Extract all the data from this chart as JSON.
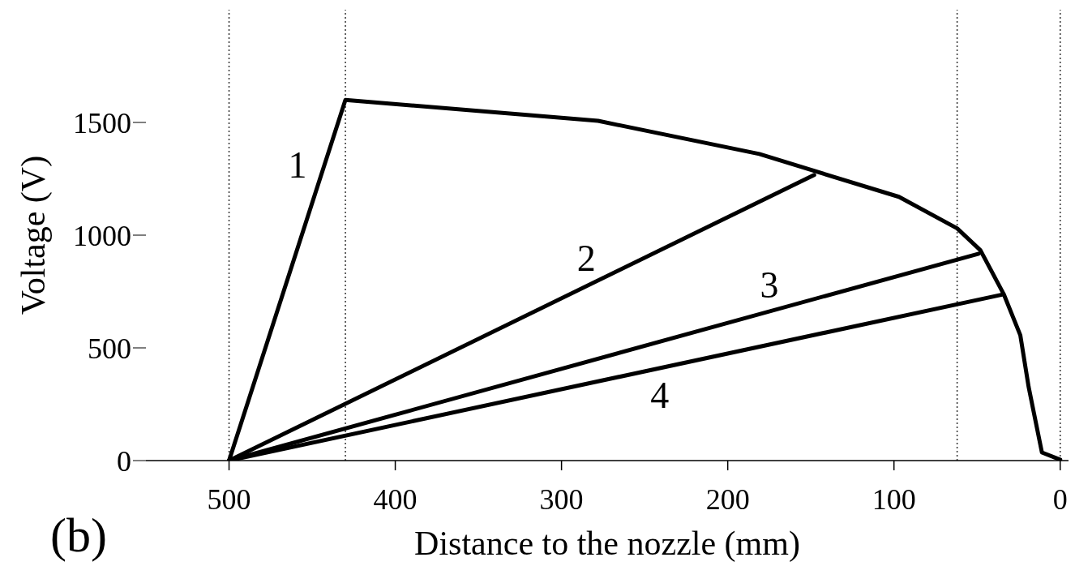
{
  "chart_data": {
    "type": "line",
    "xlabel": "Distance to the nozzle (mm)",
    "ylabel": "Voltage (V)",
    "xlim": [
      550,
      -5
    ],
    "xticks": [
      500,
      400,
      300,
      200,
      100,
      0
    ],
    "ylim": [
      0,
      2000
    ],
    "yticks": [
      0,
      500,
      1000,
      1500
    ],
    "series": [
      {
        "name": "1",
        "color": "#000000",
        "x": [
          500,
          430,
          278,
          181,
          97,
          62,
          48,
          34,
          24,
          19,
          11,
          0
        ],
        "values": [
          0,
          1600,
          1507,
          1360,
          1170,
          1030,
          933,
          739,
          556,
          327,
          36,
          4
        ]
      },
      {
        "name": "2",
        "color": "#000000",
        "x": [
          500,
          148
        ],
        "values": [
          0,
          1267
        ]
      },
      {
        "name": "3",
        "color": "#000000",
        "x": [
          500,
          49
        ],
        "values": [
          0,
          918
        ]
      },
      {
        "name": "4",
        "color": "#000000",
        "x": [
          500,
          35
        ],
        "values": [
          0,
          736
        ]
      }
    ],
    "annotations": [
      "(b)"
    ],
    "ref_lines": [
      {
        "axis": "x",
        "value": 500,
        "line_style": "dotted"
      },
      {
        "axis": "x",
        "value": 430,
        "line_style": "dotted"
      },
      {
        "axis": "x",
        "value": 62,
        "line_style": "dotted"
      },
      {
        "axis": "x",
        "value": 0,
        "line_style": "dotted"
      }
    ],
    "marker": "none",
    "line_style": "solid",
    "grid": false,
    "legend": false
  }
}
